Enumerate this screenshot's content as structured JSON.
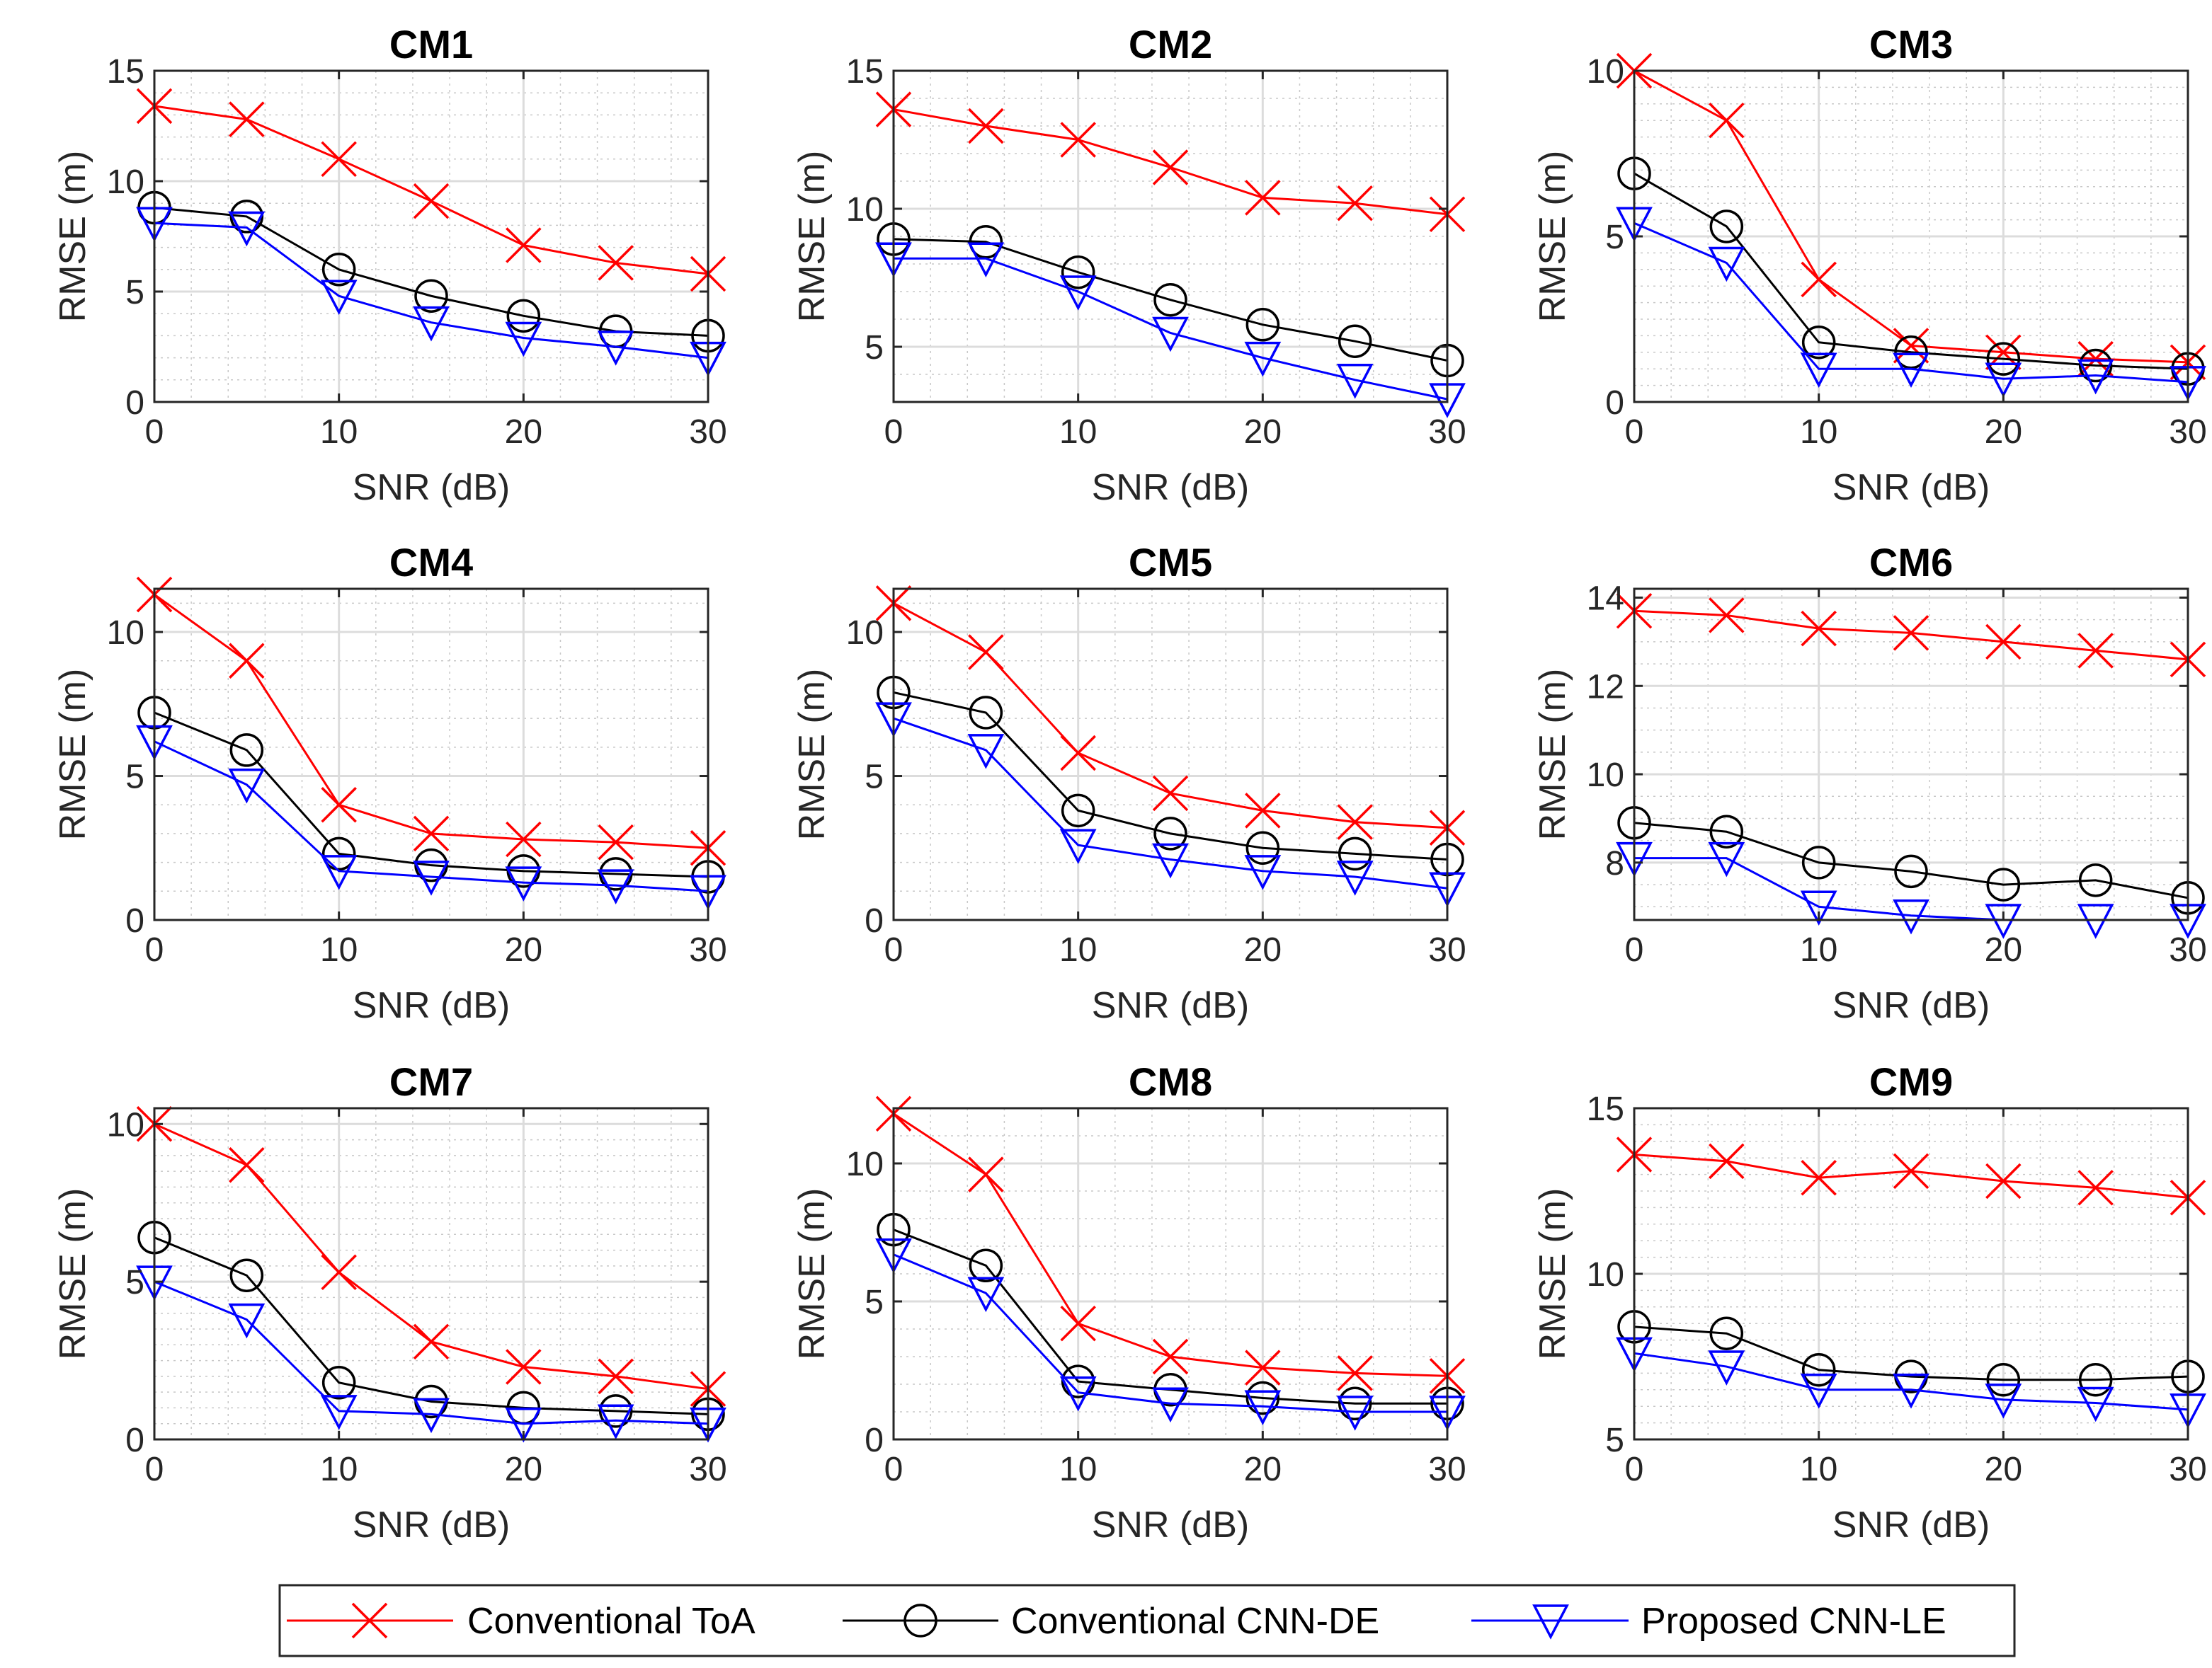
{
  "figure": {
    "x_label": "SNR (dB)",
    "y_label": "RMSE (m)"
  },
  "legend": {
    "items": [
      {
        "label": "Conventional ToA",
        "color": "#ff0000",
        "marker": "x-marker-icon"
      },
      {
        "label": "Conventional CNN-DE",
        "color": "#000000",
        "marker": "circle-marker-icon"
      },
      {
        "label": "Proposed CNN-LE",
        "color": "#0000ff",
        "marker": "triangle-down-marker-icon"
      }
    ],
    "placement": "bottom-center"
  },
  "chart_data": [
    {
      "type": "line",
      "title": "CM1",
      "xlabel": "SNR (dB)",
      "ylabel": "RMSE (m)",
      "x": [
        0,
        5,
        10,
        15,
        20,
        25,
        30
      ],
      "xlim": [
        0,
        30
      ],
      "ylim": [
        0,
        15
      ],
      "xticks": [
        0,
        10,
        20,
        30
      ],
      "yticks": [
        0,
        5,
        10,
        15
      ],
      "grid": true,
      "series": [
        {
          "name": "Conventional ToA",
          "values": [
            13.4,
            12.8,
            11.0,
            9.1,
            7.1,
            6.3,
            5.8
          ]
        },
        {
          "name": "Conventional CNN-DE",
          "values": [
            8.8,
            8.4,
            6.0,
            4.8,
            3.9,
            3.2,
            3.0
          ]
        },
        {
          "name": "Proposed CNN-LE",
          "values": [
            8.1,
            7.9,
            4.8,
            3.6,
            2.9,
            2.5,
            2.0
          ]
        }
      ]
    },
    {
      "type": "line",
      "title": "CM2",
      "xlabel": "SNR (dB)",
      "ylabel": "RMSE (m)",
      "x": [
        0,
        5,
        10,
        15,
        20,
        25,
        30
      ],
      "xlim": [
        0,
        30
      ],
      "ylim": [
        3,
        15
      ],
      "xticks": [
        0,
        10,
        20,
        30
      ],
      "yticks": [
        5,
        10,
        15
      ],
      "grid": true,
      "series": [
        {
          "name": "Conventional ToA",
          "values": [
            13.6,
            13.0,
            12.5,
            11.5,
            10.4,
            10.2,
            9.8
          ]
        },
        {
          "name": "Conventional CNN-DE",
          "values": [
            8.9,
            8.8,
            7.7,
            6.7,
            5.8,
            5.2,
            4.5
          ]
        },
        {
          "name": "Proposed CNN-LE",
          "values": [
            8.2,
            8.2,
            7.0,
            5.5,
            4.6,
            3.8,
            3.1
          ]
        }
      ]
    },
    {
      "type": "line",
      "title": "CM3",
      "xlabel": "SNR (dB)",
      "ylabel": "RMSE (m)",
      "x": [
        0,
        5,
        10,
        15,
        20,
        25,
        30
      ],
      "xlim": [
        0,
        30
      ],
      "ylim": [
        0,
        10
      ],
      "xticks": [
        0,
        10,
        20,
        30
      ],
      "yticks": [
        0,
        5,
        10
      ],
      "grid": true,
      "series": [
        {
          "name": "Conventional ToA",
          "values": [
            10.0,
            8.5,
            3.7,
            1.7,
            1.5,
            1.3,
            1.2
          ]
        },
        {
          "name": "Conventional CNN-DE",
          "values": [
            6.9,
            5.3,
            1.8,
            1.5,
            1.3,
            1.1,
            1.0
          ]
        },
        {
          "name": "Proposed CNN-LE",
          "values": [
            5.4,
            4.2,
            1.0,
            1.0,
            0.7,
            0.8,
            0.6
          ]
        }
      ]
    },
    {
      "type": "line",
      "title": "CM4",
      "xlabel": "SNR (dB)",
      "ylabel": "RMSE (m)",
      "x": [
        0,
        5,
        10,
        15,
        20,
        25,
        30
      ],
      "xlim": [
        0,
        30
      ],
      "ylim": [
        0,
        11.5
      ],
      "xticks": [
        0,
        10,
        20,
        30
      ],
      "yticks": [
        0,
        5,
        10
      ],
      "grid": true,
      "series": [
        {
          "name": "Conventional ToA",
          "values": [
            11.3,
            9.0,
            4.0,
            3.0,
            2.8,
            2.7,
            2.5
          ]
        },
        {
          "name": "Conventional CNN-DE",
          "values": [
            7.2,
            5.9,
            2.3,
            1.9,
            1.7,
            1.6,
            1.5
          ]
        },
        {
          "name": "Proposed CNN-LE",
          "values": [
            6.2,
            4.7,
            1.7,
            1.5,
            1.3,
            1.2,
            1.0
          ]
        }
      ]
    },
    {
      "type": "line",
      "title": "CM5",
      "xlabel": "SNR (dB)",
      "ylabel": "RMSE (m)",
      "x": [
        0,
        5,
        10,
        15,
        20,
        25,
        30
      ],
      "xlim": [
        0,
        30
      ],
      "ylim": [
        0,
        11.5
      ],
      "xticks": [
        0,
        10,
        20,
        30
      ],
      "yticks": [
        0,
        5,
        10
      ],
      "grid": true,
      "series": [
        {
          "name": "Conventional ToA",
          "values": [
            11.0,
            9.3,
            5.8,
            4.4,
            3.8,
            3.4,
            3.2
          ]
        },
        {
          "name": "Conventional CNN-DE",
          "values": [
            7.9,
            7.2,
            3.8,
            3.0,
            2.5,
            2.3,
            2.1
          ]
        },
        {
          "name": "Proposed CNN-LE",
          "values": [
            7.0,
            5.9,
            2.6,
            2.1,
            1.7,
            1.5,
            1.1
          ]
        }
      ]
    },
    {
      "type": "line",
      "title": "CM6",
      "xlabel": "SNR (dB)",
      "ylabel": "RMSE (m)",
      "x": [
        0,
        5,
        10,
        15,
        20,
        25,
        30
      ],
      "xlim": [
        0,
        30
      ],
      "ylim": [
        6.7,
        14.2
      ],
      "xticks": [
        0,
        10,
        20,
        30
      ],
      "yticks": [
        8,
        10,
        12,
        14
      ],
      "grid": true,
      "series": [
        {
          "name": "Conventional ToA",
          "values": [
            13.7,
            13.6,
            13.3,
            13.2,
            13.0,
            12.8,
            12.6
          ]
        },
        {
          "name": "Conventional CNN-DE",
          "values": [
            8.9,
            8.7,
            8.0,
            7.8,
            7.5,
            7.6,
            7.2
          ]
        },
        {
          "name": "Proposed CNN-LE",
          "values": [
            8.1,
            8.1,
            7.0,
            6.8,
            6.7,
            6.7,
            6.7
          ]
        }
      ]
    },
    {
      "type": "line",
      "title": "CM7",
      "xlabel": "SNR (dB)",
      "ylabel": "RMSE (m)",
      "x": [
        0,
        5,
        10,
        15,
        20,
        25,
        30
      ],
      "xlim": [
        0,
        30
      ],
      "ylim": [
        0,
        10.5
      ],
      "xticks": [
        0,
        10,
        20,
        30
      ],
      "yticks": [
        0,
        5,
        10
      ],
      "grid": true,
      "series": [
        {
          "name": "Conventional ToA",
          "values": [
            10.0,
            8.7,
            5.3,
            3.1,
            2.3,
            2.0,
            1.6
          ]
        },
        {
          "name": "Conventional CNN-DE",
          "values": [
            6.4,
            5.2,
            1.8,
            1.2,
            1.0,
            0.9,
            0.8
          ]
        },
        {
          "name": "Proposed CNN-LE",
          "values": [
            5.0,
            3.8,
            0.9,
            0.8,
            0.5,
            0.6,
            0.5
          ]
        }
      ]
    },
    {
      "type": "line",
      "title": "CM8",
      "xlabel": "SNR (dB)",
      "ylabel": "RMSE (m)",
      "x": [
        0,
        5,
        10,
        15,
        20,
        25,
        30
      ],
      "xlim": [
        0,
        30
      ],
      "ylim": [
        0,
        12
      ],
      "xticks": [
        0,
        10,
        20,
        30
      ],
      "yticks": [
        0,
        5,
        10
      ],
      "grid": true,
      "series": [
        {
          "name": "Conventional ToA",
          "values": [
            11.8,
            9.6,
            4.2,
            3.0,
            2.6,
            2.4,
            2.3
          ]
        },
        {
          "name": "Conventional CNN-DE",
          "values": [
            7.6,
            6.3,
            2.1,
            1.8,
            1.5,
            1.3,
            1.3
          ]
        },
        {
          "name": "Proposed CNN-LE",
          "values": [
            6.7,
            5.3,
            1.7,
            1.3,
            1.2,
            1.0,
            1.0
          ]
        }
      ]
    },
    {
      "type": "line",
      "title": "CM9",
      "xlabel": "SNR (dB)",
      "ylabel": "RMSE (m)",
      "x": [
        0,
        5,
        10,
        15,
        20,
        25,
        30
      ],
      "xlim": [
        0,
        30
      ],
      "ylim": [
        5,
        15
      ],
      "xticks": [
        0,
        10,
        20,
        30
      ],
      "yticks": [
        5,
        10,
        15
      ],
      "grid": true,
      "series": [
        {
          "name": "Conventional ToA",
          "values": [
            13.6,
            13.4,
            12.9,
            13.1,
            12.8,
            12.6,
            12.3
          ]
        },
        {
          "name": "Conventional CNN-DE",
          "values": [
            8.4,
            8.2,
            7.1,
            6.9,
            6.8,
            6.8,
            6.9
          ]
        },
        {
          "name": "Proposed CNN-LE",
          "values": [
            7.6,
            7.2,
            6.5,
            6.5,
            6.2,
            6.1,
            5.9
          ]
        }
      ]
    }
  ]
}
